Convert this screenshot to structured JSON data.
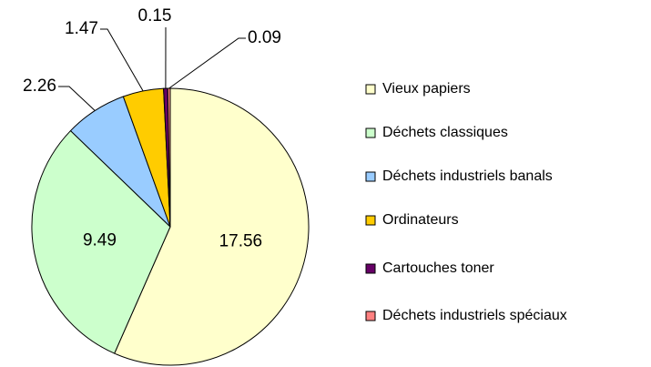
{
  "chart_data": {
    "type": "pie",
    "categories": [
      "Vieux papiers",
      "Déchets classiques",
      "Déchets industriels banals",
      "Ordinateurs",
      "Cartouches toner",
      "Déchets industriels spéciaux"
    ],
    "values": [
      17.56,
      9.49,
      2.26,
      1.47,
      0.15,
      0.09
    ],
    "colors": [
      "#ffffcc",
      "#ccffcc",
      "#99ccff",
      "#ffcc00",
      "#660066",
      "#ff8080"
    ],
    "legend": "right"
  }
}
